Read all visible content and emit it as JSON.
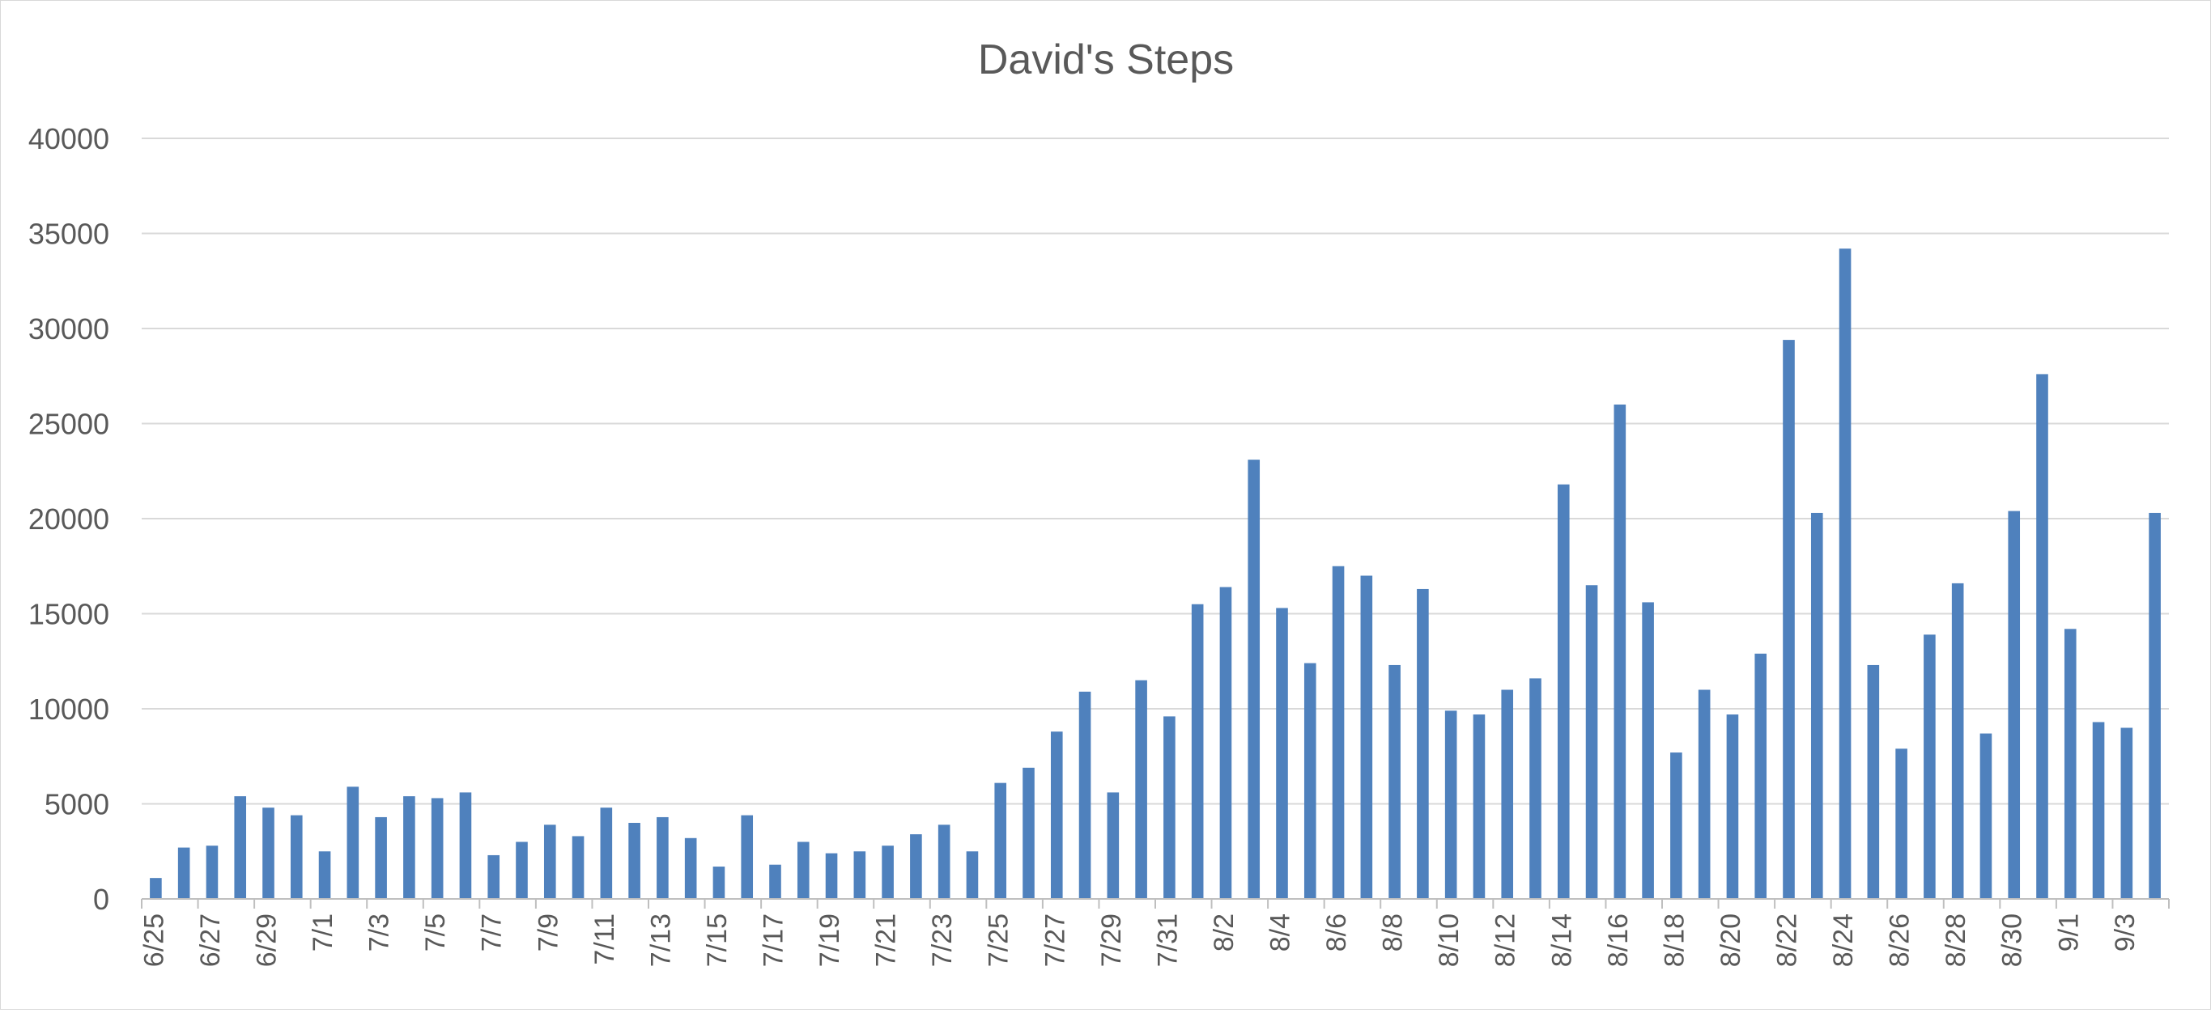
{
  "chart_data": {
    "type": "bar",
    "title": "David's Steps",
    "xlabel": "",
    "ylabel": "",
    "ylim": [
      0,
      40000
    ],
    "yticks": [
      0,
      5000,
      10000,
      15000,
      20000,
      25000,
      30000,
      35000,
      40000
    ],
    "grid": true,
    "legend": "none",
    "colors": {
      "bar": "#4f81bd",
      "grid": "#d9d9d9",
      "axis": "#bfbfbf",
      "title": "#595959",
      "tick": "#595959"
    },
    "categories": [
      "6/25",
      "6/26",
      "6/27",
      "6/28",
      "6/29",
      "6/30",
      "7/1",
      "7/2",
      "7/3",
      "7/4",
      "7/5",
      "7/6",
      "7/7",
      "7/8",
      "7/9",
      "7/10",
      "7/11",
      "7/12",
      "7/13",
      "7/14",
      "7/15",
      "7/16",
      "7/17",
      "7/18",
      "7/19",
      "7/20",
      "7/21",
      "7/22",
      "7/23",
      "7/24",
      "7/25",
      "7/26",
      "7/27",
      "7/28",
      "7/29",
      "7/30",
      "7/31",
      "8/1",
      "8/2",
      "8/3",
      "8/4",
      "8/5",
      "8/6",
      "8/7",
      "8/8",
      "8/9",
      "8/10",
      "8/11",
      "8/12",
      "8/13",
      "8/14",
      "8/15",
      "8/16",
      "8/17",
      "8/18",
      "8/19",
      "8/20",
      "8/21",
      "8/22",
      "8/23",
      "8/24",
      "8/25",
      "8/26",
      "8/27",
      "8/28",
      "8/29",
      "8/30",
      "8/31",
      "9/1",
      "9/2",
      "9/3",
      "9/4"
    ],
    "tick_labels": [
      "6/25",
      "",
      "6/27",
      "",
      "6/29",
      "",
      "7/1",
      "",
      "7/3",
      "",
      "7/5",
      "",
      "7/7",
      "",
      "7/9",
      "",
      "7/11",
      "",
      "7/13",
      "",
      "7/15",
      "",
      "7/17",
      "",
      "7/19",
      "",
      "7/21",
      "",
      "7/23",
      "",
      "7/25",
      "",
      "7/27",
      "",
      "7/29",
      "",
      "7/31",
      "",
      "8/2",
      "",
      "8/4",
      "",
      "8/6",
      "",
      "8/8",
      "",
      "8/10",
      "",
      "8/12",
      "",
      "8/14",
      "",
      "8/16",
      "",
      "8/18",
      "",
      "8/20",
      "",
      "8/22",
      "",
      "8/24",
      "",
      "8/26",
      "",
      "8/28",
      "",
      "8/30",
      "",
      "9/1",
      "",
      "9/3",
      ""
    ],
    "values": [
      1100,
      2700,
      2800,
      5400,
      4800,
      4400,
      2500,
      5900,
      4300,
      5400,
      5300,
      5600,
      2300,
      3000,
      3900,
      3300,
      4800,
      4000,
      4300,
      3200,
      1700,
      4400,
      1800,
      3000,
      2400,
      2500,
      2800,
      3400,
      3900,
      2500,
      6100,
      6900,
      8800,
      10900,
      5600,
      11500,
      9600,
      15500,
      16400,
      23100,
      15300,
      12400,
      17500,
      17000,
      12300,
      16300,
      9900,
      9700,
      11000,
      11600,
      21800,
      16500,
      26000,
      15600,
      7700,
      11000,
      9700,
      12900,
      29400,
      20300,
      34200,
      12300,
      7900,
      13900,
      16600,
      8700,
      20400,
      27600,
      14200,
      9300,
      9000,
      20300
    ]
  }
}
